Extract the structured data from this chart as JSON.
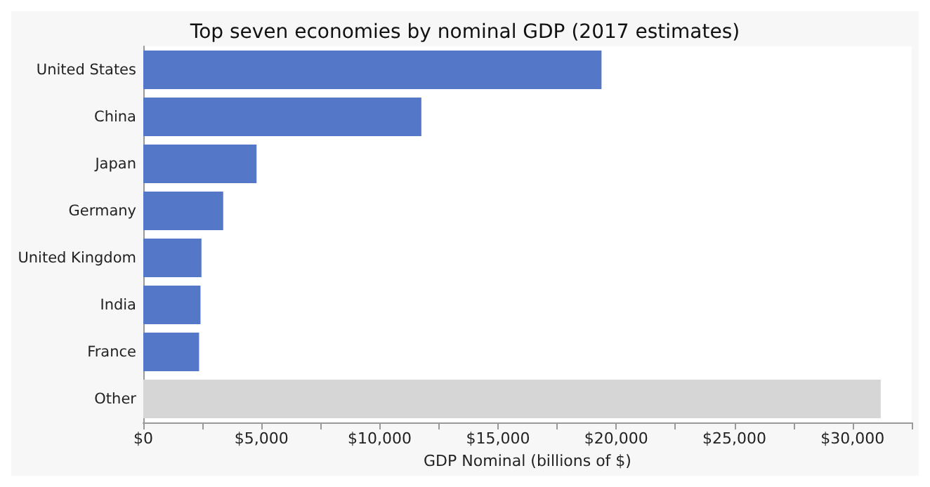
{
  "chart_data": {
    "type": "bar",
    "orientation": "horizontal",
    "title": "Top seven economies by nominal GDP (2017 estimates)",
    "xlabel": "GDP Nominal (billions of $)",
    "categories": [
      "United States",
      "China",
      "Japan",
      "Germany",
      "United Kingdom",
      "India",
      "France",
      "Other"
    ],
    "values": [
      19380,
      11760,
      4790,
      3380,
      2460,
      2420,
      2360,
      31190
    ],
    "colors": [
      "#5577c8",
      "#5577c8",
      "#5577c8",
      "#5577c8",
      "#5577c8",
      "#5577c8",
      "#5577c8",
      "#d6d6d6"
    ],
    "xlim": [
      0,
      32500
    ],
    "xticks": [
      {
        "value": 0,
        "label": "$0"
      },
      {
        "value": 2500,
        "label": null
      },
      {
        "value": 5000,
        "label": "$5,000"
      },
      {
        "value": 7500,
        "label": null
      },
      {
        "value": 10000,
        "label": "$10,000"
      },
      {
        "value": 12500,
        "label": null
      },
      {
        "value": 15000,
        "label": "$15,000"
      },
      {
        "value": 17500,
        "label": null
      },
      {
        "value": 20000,
        "label": "$20,000"
      },
      {
        "value": 22500,
        "label": null
      },
      {
        "value": 25000,
        "label": "$25,000"
      },
      {
        "value": 27500,
        "label": null
      },
      {
        "value": 30000,
        "label": "$30,000"
      },
      {
        "value": 32500,
        "label": null
      }
    ],
    "grid": false
  }
}
